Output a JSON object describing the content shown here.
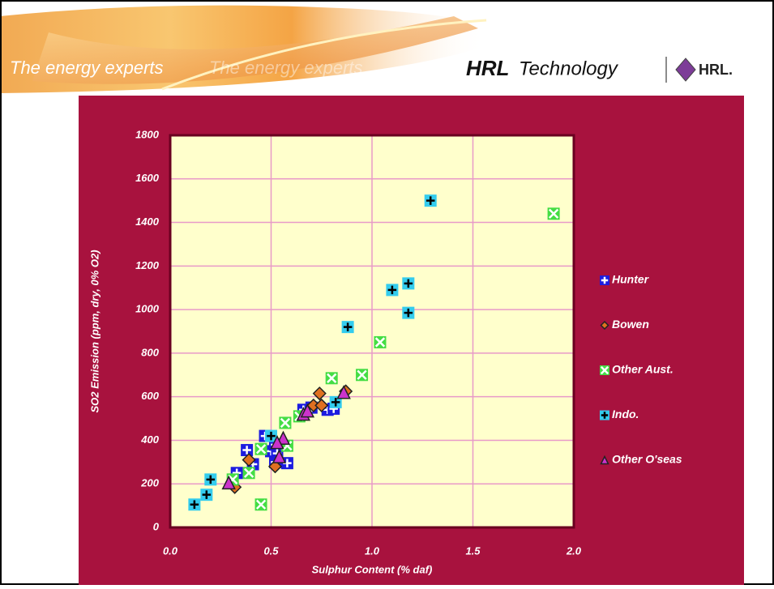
{
  "header": {
    "tagline": "The energy experts",
    "tagline_echo": "The energy experts",
    "logo_bold": "HRL",
    "logo_light": "Technology",
    "brand": "HRL."
  },
  "chart_data": {
    "type": "scatter",
    "x_label": "Sulphur Content (% daf)",
    "y_label": "SO2 Emission (ppm, dry, 0% O2)",
    "xlim": [
      0,
      2
    ],
    "xticks": [
      {
        "value": 0,
        "label": "0.0"
      },
      0.5,
      {
        "value": 1,
        "label": "1.0"
      },
      1.5,
      {
        "value": 2,
        "label": "2.0"
      }
    ],
    "ylim": [
      0,
      1800
    ],
    "yticks": [
      0,
      200,
      400,
      600,
      800,
      1000,
      1200,
      1400,
      1600,
      1800
    ],
    "grid": true,
    "legend": "right",
    "series": [
      {
        "name": "Hunter",
        "color": "#1c1ce0",
        "marker": "square-plus",
        "x": [
          0.47,
          0.38,
          0.41,
          0.52,
          0.58,
          0.33,
          0.5,
          0.52,
          0.78,
          0.81,
          0.66,
          0.7,
          0.53
        ],
        "values": [
          420,
          355,
          290,
          300,
          295,
          250,
          350,
          380,
          540,
          545,
          540,
          550,
          340
        ]
      },
      {
        "name": "Bowen",
        "color": "#e07020",
        "marker": "diamond",
        "x": [
          0.32,
          0.39,
          0.52,
          0.71,
          0.75,
          0.74,
          0.87
        ],
        "values": [
          185,
          310,
          280,
          560,
          560,
          615,
          625
        ]
      },
      {
        "name": "Other Aust.",
        "color": "#44dd44",
        "marker": "square-x",
        "x": [
          0.31,
          0.39,
          0.45,
          0.45,
          0.58,
          0.57,
          0.64,
          0.8,
          0.95,
          1.04,
          1.9
        ],
        "values": [
          220,
          250,
          360,
          105,
          375,
          480,
          510,
          685,
          700,
          850,
          1440
        ]
      },
      {
        "name": "Indo.",
        "color": "#33ccee",
        "marker": "square-plus-dark",
        "x": [
          0.12,
          0.18,
          0.2,
          0.88,
          1.1,
          1.18,
          1.18,
          1.29,
          0.82,
          0.5
        ],
        "values": [
          105,
          150,
          220,
          920,
          1090,
          1120,
          985,
          1500,
          575,
          420
        ]
      },
      {
        "name": "Other O'seas",
        "color": "#cc33cc",
        "marker": "triangle",
        "x": [
          0.29,
          0.54,
          0.56,
          0.66,
          0.68,
          0.86,
          0.53
        ],
        "values": [
          205,
          325,
          410,
          520,
          535,
          620,
          390
        ]
      }
    ]
  }
}
